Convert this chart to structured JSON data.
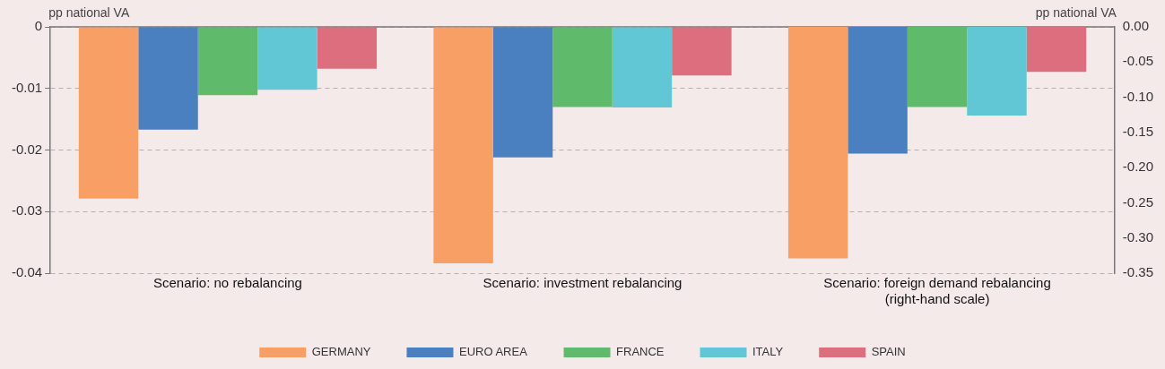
{
  "chart_data": {
    "type": "bar",
    "categories": [
      "Scenario: no rebalancing",
      "Scenario: investment rebalancing",
      "Scenario: foreign demand rebalancing\n(right-hand scale)"
    ],
    "ylabel": "pp national VA",
    "y2label": "pp national VA",
    "series": [
      {
        "name": "GERMANY",
        "color": "#f89f65",
        "values": [
          -0.0279,
          -0.0384,
          null
        ]
      },
      {
        "name": "EURO AREA",
        "color": "#4a7fc0",
        "values": [
          -0.0167,
          -0.0212,
          null
        ]
      },
      {
        "name": "FRANCE",
        "color": "#5fbb6b",
        "values": [
          -0.0111,
          -0.013,
          null
        ]
      },
      {
        "name": "ITALY",
        "color": "#62c7d4",
        "values": [
          -0.0102,
          -0.0131,
          null
        ]
      },
      {
        "name": "SPAIN",
        "color": "#dc6e7e",
        "values": [
          -0.0068,
          -0.0079,
          null
        ]
      },
      {
        "color": "#f89f65",
        "axis": "y2",
        "values": [
          null,
          null,
          -0.329
        ]
      },
      {
        "color": "#4a7fc0",
        "axis": "y2",
        "values": [
          null,
          null,
          -0.18
        ]
      },
      {
        "color": "#5fbb6b",
        "axis": "y2",
        "values": [
          null,
          null,
          -0.114
        ]
      },
      {
        "color": "#62c7d4",
        "axis": "y2",
        "values": [
          null,
          null,
          -0.126
        ]
      },
      {
        "color": "#dc6e7e",
        "axis": "y2",
        "values": [
          null,
          null,
          -0.064
        ]
      }
    ],
    "ylim": [
      -0.04,
      0
    ],
    "yticks": [
      0,
      -0.01,
      -0.02,
      -0.03,
      -0.04
    ],
    "y2lim": [
      -0.35,
      0
    ],
    "y2ticks": [
      {
        "value": 0,
        "label": "0.00"
      },
      {
        "value": -0.05,
        "label": "-0.05"
      },
      {
        "value": -0.1,
        "label": "-0.10"
      },
      {
        "value": -0.15,
        "label": "-0.15"
      },
      {
        "value": -0.2,
        "label": "-0.20"
      },
      {
        "value": -0.25,
        "label": "-0.25"
      },
      {
        "value": -0.3,
        "label": "-0.30"
      },
      {
        "value": -0.35,
        "label": "-0.35"
      }
    ],
    "grid": "y",
    "legend": "bottom"
  }
}
